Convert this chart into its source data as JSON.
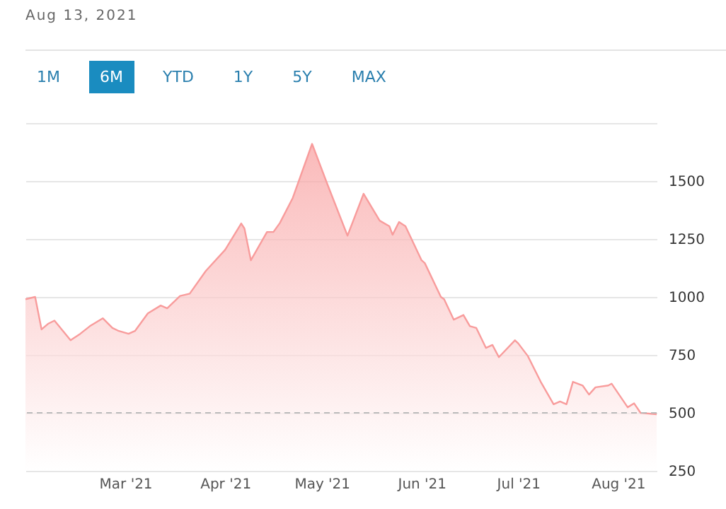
{
  "chart_data": {
    "type": "area",
    "annotations": [
      "Aug 13, 2021",
      "1M",
      "6M",
      "YTD",
      "1Y",
      "5Y",
      "MAX"
    ],
    "x": [
      "2021-01-29",
      "2021-02-01",
      "2021-02-03",
      "2021-02-05",
      "2021-02-07",
      "2021-02-12",
      "2021-02-15",
      "2021-02-18",
      "2021-02-22",
      "2021-02-25",
      "2021-02-27",
      "2021-03-02",
      "2021-03-04",
      "2021-03-08",
      "2021-03-12",
      "2021-03-14",
      "2021-03-18",
      "2021-03-21",
      "2021-03-26",
      "2021-04-01",
      "2021-04-06",
      "2021-04-07",
      "2021-04-09",
      "2021-04-14",
      "2021-04-16",
      "2021-04-18",
      "2021-04-22",
      "2021-04-28",
      "2021-05-03",
      "2021-05-09",
      "2021-05-14",
      "2021-05-19",
      "2021-05-22",
      "2021-05-23",
      "2021-05-25",
      "2021-05-27",
      "2021-06-01",
      "2021-06-02",
      "2021-06-07",
      "2021-06-08",
      "2021-06-11",
      "2021-06-14",
      "2021-06-16",
      "2021-06-18",
      "2021-06-21",
      "2021-06-23",
      "2021-06-25",
      "2021-06-30",
      "2021-07-01",
      "2021-07-04",
      "2021-07-08",
      "2021-07-12",
      "2021-07-14",
      "2021-07-16",
      "2021-07-18",
      "2021-07-21",
      "2021-07-23",
      "2021-07-25",
      "2021-07-29",
      "2021-07-30",
      "2021-08-04",
      "2021-08-06",
      "2021-08-08",
      "2021-08-13"
    ],
    "series": [
      {
        "color": "#f89c9c",
        "values": [
          990,
          1000,
          860,
          884,
          898,
          813,
          841,
          874,
          908,
          866,
          853,
          841,
          853,
          929,
          963,
          951,
          1004,
          1014,
          1112,
          1203,
          1317,
          1295,
          1158,
          1280,
          1280,
          1319,
          1427,
          1660,
          1477,
          1264,
          1445,
          1329,
          1305,
          1268,
          1323,
          1305,
          1158,
          1146,
          1000,
          990,
          902,
          922,
          874,
          866,
          780,
          793,
          740,
          813,
          800,
          745,
          634,
          537,
          549,
          537,
          634,
          618,
          579,
          610,
          618,
          626,
          524,
          541,
          500,
          494
        ]
      }
    ],
    "xlim": [
      "2021-01-29",
      "2021-08-13"
    ],
    "xticks": [
      {
        "value": "2021-03-01",
        "label": "Mar '21"
      },
      {
        "value": "2021-04-01",
        "label": "Apr '21"
      },
      {
        "value": "2021-05-01",
        "label": "May '21"
      },
      {
        "value": "2021-06-01",
        "label": "Jun '21"
      },
      {
        "value": "2021-07-01",
        "label": "Jul '21"
      },
      {
        "value": "2021-08-01",
        "label": "Aug '21"
      }
    ],
    "ylim": [
      250,
      1750
    ],
    "yticks": [
      250,
      500,
      750,
      1000,
      1250,
      1500,
      {
        "value": 1750,
        "label": null
      }
    ],
    "grid": "y",
    "ref_lines": [
      {
        "axis": "y",
        "value": 500,
        "line_style": "dashed"
      }
    ]
  }
}
